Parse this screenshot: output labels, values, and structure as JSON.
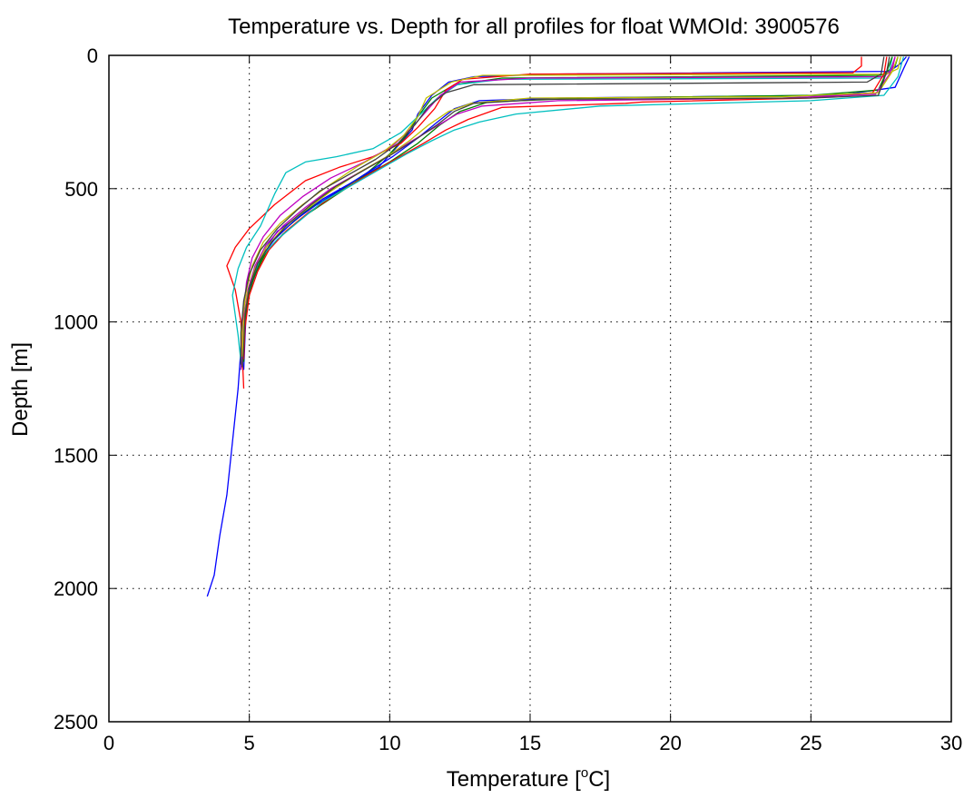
{
  "chart_data": {
    "type": "line",
    "title": "Temperature vs. Depth for all profiles for float WMOId: 3900576",
    "xlabel": {
      "prefix": "Temperature [",
      "superscript": "o",
      "suffix": "C]"
    },
    "ylabel": "Depth [m]",
    "xlim": [
      0,
      30
    ],
    "ylim": [
      0,
      2500
    ],
    "y_reversed": true,
    "grid": "dotted",
    "legend": "none",
    "xticks": [
      0,
      5,
      10,
      15,
      20,
      25,
      30
    ],
    "yticks": [
      0,
      500,
      1000,
      1500,
      2000,
      2500
    ],
    "series": [
      {
        "color": "#0000ff",
        "points": [
          [
            28.4,
            5
          ],
          [
            28.2,
            30
          ],
          [
            27.8,
            60
          ],
          [
            16,
            70
          ],
          [
            13,
            80
          ],
          [
            12.1,
            100
          ],
          [
            11.5,
            150
          ],
          [
            11,
            220
          ],
          [
            10.8,
            280
          ],
          [
            10.2,
            350
          ],
          [
            9.6,
            420
          ],
          [
            8.6,
            480
          ],
          [
            7.6,
            540
          ],
          [
            6.8,
            600
          ],
          [
            6,
            660
          ],
          [
            5.6,
            720
          ],
          [
            5.3,
            800
          ],
          [
            5,
            880
          ],
          [
            4.8,
            980
          ],
          [
            4.7,
            1100
          ],
          [
            4.6,
            1250
          ],
          [
            4.4,
            1450
          ],
          [
            4.2,
            1650
          ],
          [
            3.95,
            1800
          ],
          [
            3.75,
            1950
          ],
          [
            3.5,
            2030
          ]
        ]
      },
      {
        "color": "#008000",
        "points": [
          [
            28.1,
            5
          ],
          [
            28,
            40
          ],
          [
            27.5,
            75
          ],
          [
            14,
            85
          ],
          [
            12.3,
            110
          ],
          [
            11.5,
            160
          ],
          [
            11,
            230
          ],
          [
            10.6,
            300
          ],
          [
            10,
            370
          ],
          [
            9.2,
            440
          ],
          [
            8.2,
            510
          ],
          [
            7.2,
            570
          ],
          [
            6.4,
            640
          ],
          [
            5.8,
            700
          ],
          [
            5.4,
            770
          ],
          [
            5.1,
            850
          ],
          [
            4.9,
            950
          ],
          [
            4.8,
            1080
          ],
          [
            4.7,
            1180
          ]
        ]
      },
      {
        "color": "#ff0000",
        "points": [
          [
            26.8,
            5
          ],
          [
            26.8,
            40
          ],
          [
            26.5,
            65
          ],
          [
            15,
            70
          ],
          [
            12.6,
            90
          ],
          [
            12,
            130
          ],
          [
            11.6,
            200
          ],
          [
            11,
            270
          ],
          [
            10.4,
            330
          ],
          [
            9.4,
            380
          ],
          [
            8.2,
            420
          ],
          [
            7,
            470
          ],
          [
            5.9,
            560
          ],
          [
            5,
            650
          ],
          [
            4.5,
            720
          ],
          [
            4.2,
            790
          ],
          [
            4.5,
            880
          ],
          [
            4.7,
            1000
          ],
          [
            4.8,
            1250
          ]
        ]
      },
      {
        "color": "#00bfbf",
        "points": [
          [
            27.9,
            5
          ],
          [
            27.8,
            60
          ],
          [
            27.5,
            85
          ],
          [
            14,
            90
          ],
          [
            12.4,
            110
          ],
          [
            11.7,
            160
          ],
          [
            11.1,
            220
          ],
          [
            10.4,
            290
          ],
          [
            9.4,
            350
          ],
          [
            8.1,
            380
          ],
          [
            7,
            400
          ],
          [
            6.3,
            440
          ],
          [
            5.9,
            520
          ],
          [
            5.4,
            640
          ],
          [
            4.9,
            720
          ],
          [
            4.6,
            800
          ],
          [
            4.4,
            900
          ],
          [
            4.6,
            1050
          ],
          [
            4.7,
            1150
          ]
        ]
      },
      {
        "color": "#bf00bf",
        "points": [
          [
            28,
            5
          ],
          [
            27.9,
            50
          ],
          [
            27.6,
            80
          ],
          [
            15,
            85
          ],
          [
            12.5,
            100
          ],
          [
            11.8,
            150
          ],
          [
            11.3,
            210
          ],
          [
            10.8,
            270
          ],
          [
            10.1,
            340
          ],
          [
            9.1,
            400
          ],
          [
            7.9,
            460
          ],
          [
            6.9,
            530
          ],
          [
            6.1,
            600
          ],
          [
            5.5,
            680
          ],
          [
            5.1,
            760
          ],
          [
            4.9,
            850
          ],
          [
            4.8,
            960
          ],
          [
            4.75,
            1100
          ],
          [
            4.7,
            1180
          ]
        ]
      },
      {
        "color": "#bfbf00",
        "points": [
          [
            28.2,
            5
          ],
          [
            28.1,
            50
          ],
          [
            27.7,
            70
          ],
          [
            13.3,
            75
          ],
          [
            12.2,
            100
          ],
          [
            11.3,
            160
          ],
          [
            11,
            230
          ],
          [
            10.5,
            300
          ],
          [
            9.8,
            360
          ],
          [
            8.8,
            420
          ],
          [
            7.8,
            490
          ],
          [
            6.9,
            560
          ],
          [
            6.1,
            630
          ],
          [
            5.5,
            700
          ],
          [
            5.1,
            790
          ],
          [
            4.9,
            880
          ],
          [
            4.75,
            990
          ],
          [
            4.7,
            1120
          ]
        ]
      },
      {
        "color": "#404040",
        "points": [
          [
            27.6,
            5
          ],
          [
            27.5,
            70
          ],
          [
            27,
            100
          ],
          [
            13,
            110
          ],
          [
            12,
            140
          ],
          [
            11.4,
            190
          ],
          [
            10.9,
            260
          ],
          [
            10.3,
            330
          ],
          [
            9.5,
            390
          ],
          [
            8.5,
            450
          ],
          [
            7.5,
            510
          ],
          [
            6.7,
            580
          ],
          [
            6,
            650
          ],
          [
            5.4,
            730
          ],
          [
            5,
            820
          ],
          [
            4.8,
            920
          ],
          [
            4.7,
            1040
          ],
          [
            4.7,
            1160
          ]
        ]
      },
      {
        "color": "#0000ff",
        "points": [
          [
            28.5,
            5
          ],
          [
            28.3,
            50
          ],
          [
            28,
            120
          ],
          [
            26,
            150
          ],
          [
            16,
            160
          ],
          [
            13.2,
            170
          ],
          [
            12.3,
            200
          ],
          [
            11.7,
            250
          ],
          [
            11,
            310
          ],
          [
            10.1,
            380
          ],
          [
            9.2,
            440
          ],
          [
            8.3,
            500
          ],
          [
            7.4,
            560
          ],
          [
            6.6,
            620
          ],
          [
            5.9,
            690
          ],
          [
            5.4,
            760
          ],
          [
            5.1,
            840
          ],
          [
            4.9,
            930
          ],
          [
            4.85,
            1050
          ],
          [
            4.8,
            1180
          ]
        ]
      },
      {
        "color": "#008000",
        "points": [
          [
            27.9,
            5
          ],
          [
            27.7,
            60
          ],
          [
            27.4,
            130
          ],
          [
            25,
            150
          ],
          [
            17,
            160
          ],
          [
            13.5,
            175
          ],
          [
            12.5,
            210
          ],
          [
            11.8,
            260
          ],
          [
            11,
            330
          ],
          [
            10,
            400
          ],
          [
            9,
            460
          ],
          [
            8,
            530
          ],
          [
            7,
            600
          ],
          [
            6.2,
            670
          ],
          [
            5.6,
            740
          ],
          [
            5.2,
            820
          ],
          [
            4.95,
            910
          ],
          [
            4.8,
            1030
          ],
          [
            4.8,
            1150
          ]
        ]
      },
      {
        "color": "#ff0000",
        "points": [
          [
            27.7,
            5
          ],
          [
            27.6,
            70
          ],
          [
            27.2,
            140
          ],
          [
            25,
            160
          ],
          [
            19,
            175
          ],
          [
            18.4,
            180
          ],
          [
            14,
            195
          ],
          [
            12.8,
            240
          ],
          [
            12,
            280
          ],
          [
            11.2,
            330
          ],
          [
            10.2,
            390
          ],
          [
            9.2,
            450
          ],
          [
            8.1,
            520
          ],
          [
            7.1,
            590
          ],
          [
            6.3,
            660
          ],
          [
            5.7,
            730
          ],
          [
            5.3,
            810
          ],
          [
            5,
            900
          ],
          [
            4.85,
            1020
          ],
          [
            4.8,
            1140
          ]
        ]
      },
      {
        "color": "#00bfbf",
        "points": [
          [
            28.3,
            5
          ],
          [
            28.1,
            80
          ],
          [
            27.6,
            150
          ],
          [
            25,
            170
          ],
          [
            17.5,
            190
          ],
          [
            14.5,
            220
          ],
          [
            13.2,
            250
          ],
          [
            12.3,
            280
          ],
          [
            11.5,
            320
          ],
          [
            10.6,
            370
          ],
          [
            9.6,
            430
          ],
          [
            8.6,
            490
          ],
          [
            7.6,
            550
          ],
          [
            6.8,
            620
          ],
          [
            6,
            690
          ],
          [
            5.4,
            760
          ],
          [
            5.05,
            850
          ],
          [
            4.85,
            950
          ],
          [
            4.8,
            1080
          ],
          [
            4.75,
            1170
          ]
        ]
      },
      {
        "color": "#bf00bf",
        "points": [
          [
            28,
            5
          ],
          [
            27.8,
            70
          ],
          [
            27.3,
            145
          ],
          [
            24,
            160
          ],
          [
            16,
            170
          ],
          [
            13.3,
            190
          ],
          [
            12.4,
            220
          ],
          [
            11.6,
            270
          ],
          [
            10.8,
            320
          ],
          [
            9.9,
            380
          ],
          [
            8.9,
            440
          ],
          [
            7.9,
            500
          ],
          [
            7,
            570
          ],
          [
            6.2,
            640
          ],
          [
            5.6,
            710
          ],
          [
            5.2,
            790
          ],
          [
            4.95,
            880
          ],
          [
            4.8,
            990
          ],
          [
            4.75,
            1120
          ]
        ]
      },
      {
        "color": "#bfbf00",
        "points": [
          [
            28.1,
            5
          ],
          [
            27.9,
            60
          ],
          [
            27.4,
            140
          ],
          [
            24,
            155
          ],
          [
            15,
            160
          ],
          [
            12.9,
            180
          ],
          [
            12.1,
            210
          ],
          [
            11.4,
            260
          ],
          [
            10.7,
            320
          ],
          [
            9.9,
            380
          ],
          [
            8.9,
            440
          ],
          [
            7.9,
            510
          ],
          [
            7,
            580
          ],
          [
            6.2,
            650
          ],
          [
            5.6,
            720
          ],
          [
            5.2,
            800
          ],
          [
            4.95,
            890
          ],
          [
            4.8,
            1000
          ],
          [
            4.75,
            1130
          ]
        ]
      },
      {
        "color": "#404040",
        "points": [
          [
            27.8,
            5
          ],
          [
            27.7,
            60
          ],
          [
            27.4,
            150
          ],
          [
            25,
            160
          ],
          [
            15.5,
            165
          ],
          [
            13,
            180
          ],
          [
            12.3,
            210
          ],
          [
            11.7,
            260
          ],
          [
            11,
            310
          ],
          [
            10.1,
            370
          ],
          [
            9.1,
            430
          ],
          [
            8.1,
            490
          ],
          [
            7.2,
            560
          ],
          [
            6.4,
            630
          ],
          [
            5.8,
            700
          ],
          [
            5.3,
            780
          ],
          [
            5,
            870
          ],
          [
            4.85,
            970
          ],
          [
            4.8,
            1100
          ],
          [
            4.75,
            1170
          ]
        ]
      }
    ]
  }
}
